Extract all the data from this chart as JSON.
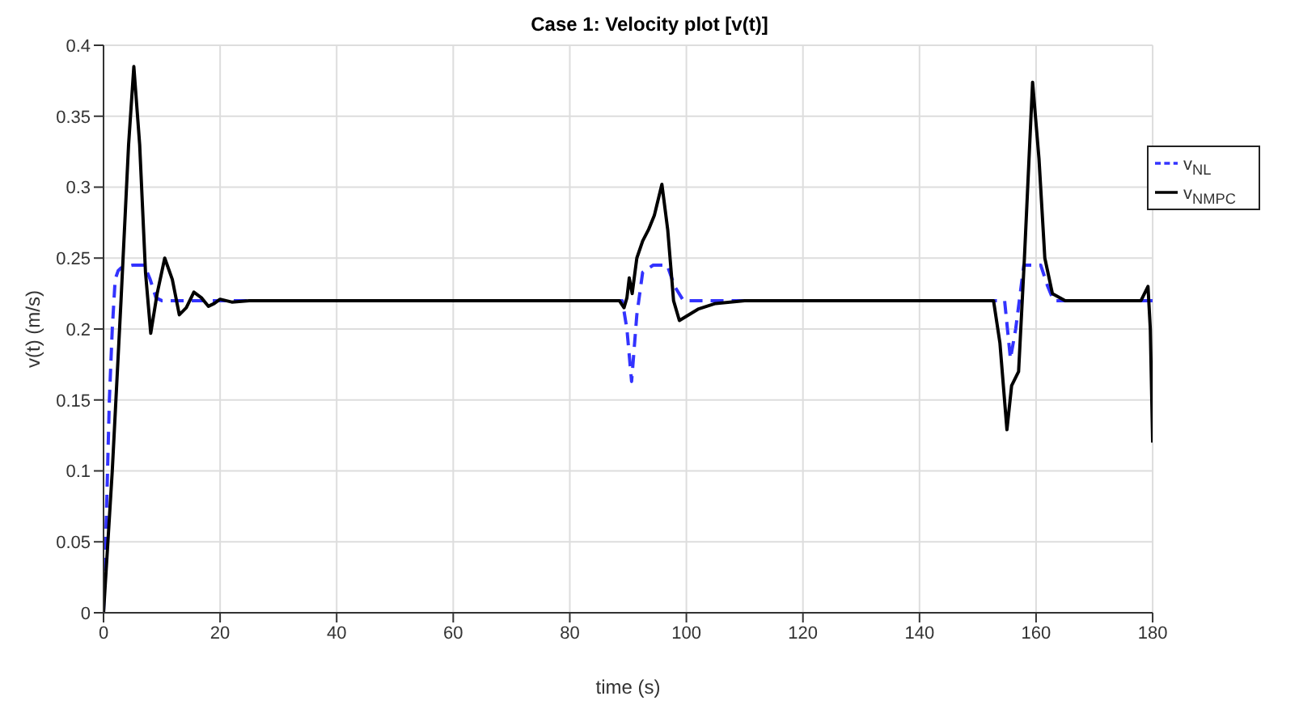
{
  "chart_data": {
    "type": "line",
    "title": "Case 1: Velocity plot [v(t)]",
    "xlabel": "time (s)",
    "ylabel": "v(t) (m/s)",
    "xlim": [
      0,
      180
    ],
    "xticks": [
      0,
      20,
      40,
      60,
      80,
      100,
      120,
      140,
      160,
      180
    ],
    "ylim": [
      0,
      0.4
    ],
    "yticks": [
      0,
      0.05,
      0.1,
      0.15,
      0.2,
      0.25,
      0.3,
      0.35,
      0.4
    ],
    "grid": true,
    "legend": "top right",
    "marker": "none",
    "series": [
      {
        "name": "v$_{NL}$",
        "color": "#3333ff",
        "line_style": "dashed",
        "x": [
          0,
          0.5,
          1,
          1.5,
          2,
          2.5,
          3,
          5,
          7,
          8,
          9,
          10,
          20,
          89,
          89.8,
          90.6,
          91.5,
          92.5,
          94.3,
          96.7,
          98,
          99.5,
          110,
          154.6,
          155.6,
          156.5,
          157.9,
          160.8,
          162,
          163,
          180
        ],
        "values": [
          0,
          0.07,
          0.15,
          0.2,
          0.235,
          0.241,
          0.243,
          0.245,
          0.245,
          0.235,
          0.222,
          0.22,
          0.22,
          0.22,
          0.2,
          0.163,
          0.21,
          0.24,
          0.245,
          0.245,
          0.23,
          0.22,
          0.22,
          0.22,
          0.179,
          0.2,
          0.245,
          0.245,
          0.23,
          0.22,
          0.22
        ]
      },
      {
        "name": "v$_{NMPC}$",
        "color": "#000000",
        "line_style": "solid",
        "x": [
          0,
          1.5,
          3,
          4.3,
          5.2,
          6.2,
          7.2,
          8.1,
          9.2,
          10.5,
          11.8,
          13,
          14.2,
          15.5,
          16.8,
          18,
          19,
          20,
          22,
          25,
          40,
          60,
          80,
          88.5,
          89.3,
          89.8,
          90.2,
          90.7,
          91.5,
          92.5,
          93.5,
          94.5,
          95.8,
          96.8,
          97.8,
          98.8,
          100,
          102,
          105,
          110,
          130,
          150,
          152.7,
          153.8,
          155,
          155.8,
          157,
          158,
          159.4,
          160.5,
          161.5,
          162.8,
          165,
          170,
          178,
          179.2,
          179.6,
          180
        ],
        "values": [
          0,
          0.1,
          0.22,
          0.33,
          0.385,
          0.33,
          0.24,
          0.197,
          0.225,
          0.25,
          0.235,
          0.21,
          0.215,
          0.226,
          0.222,
          0.216,
          0.218,
          0.221,
          0.219,
          0.22,
          0.22,
          0.22,
          0.22,
          0.22,
          0.215,
          0.222,
          0.236,
          0.225,
          0.25,
          0.262,
          0.27,
          0.28,
          0.302,
          0.27,
          0.22,
          0.206,
          0.209,
          0.214,
          0.218,
          0.22,
          0.22,
          0.22,
          0.22,
          0.19,
          0.129,
          0.16,
          0.17,
          0.25,
          0.374,
          0.32,
          0.25,
          0.225,
          0.22,
          0.22,
          0.22,
          0.23,
          0.2,
          0.12
        ]
      }
    ]
  }
}
